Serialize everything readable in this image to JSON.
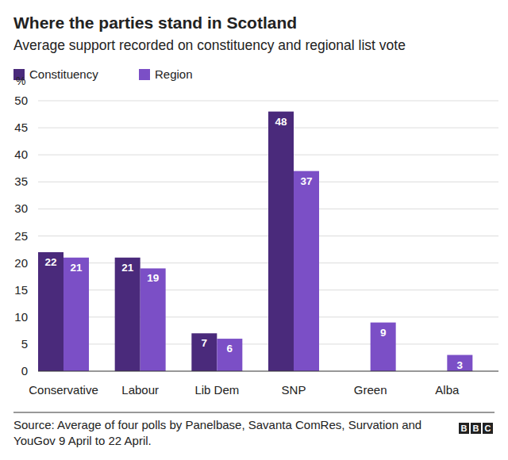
{
  "chart_data": {
    "type": "bar",
    "title": "Where the parties stand in Scotland",
    "subtitle": "Average support recorded on constituency and regional list vote",
    "y_label": "%",
    "source": "Source: Average of four polls by Panelbase, Savanta ComRes, Survation and YouGov 9 April to 22 April.",
    "branding": "BBC",
    "categories": [
      "Conservative",
      "Labour",
      "Lib Dem",
      "SNP",
      "Green",
      "Alba"
    ],
    "series": [
      {
        "name": "Constituency",
        "color": "#4a2a7b",
        "values": [
          22,
          21,
          7,
          48,
          null,
          null
        ]
      },
      {
        "name": "Region",
        "color": "#7b4fc6",
        "values": [
          21,
          19,
          6,
          37,
          9,
          3
        ]
      }
    ],
    "ylim": [
      0,
      50
    ],
    "yticks": [
      0,
      5,
      10,
      15,
      20,
      25,
      30,
      35,
      40,
      45,
      50
    ],
    "grid": true,
    "legend": "top-left",
    "data_labels": true
  }
}
